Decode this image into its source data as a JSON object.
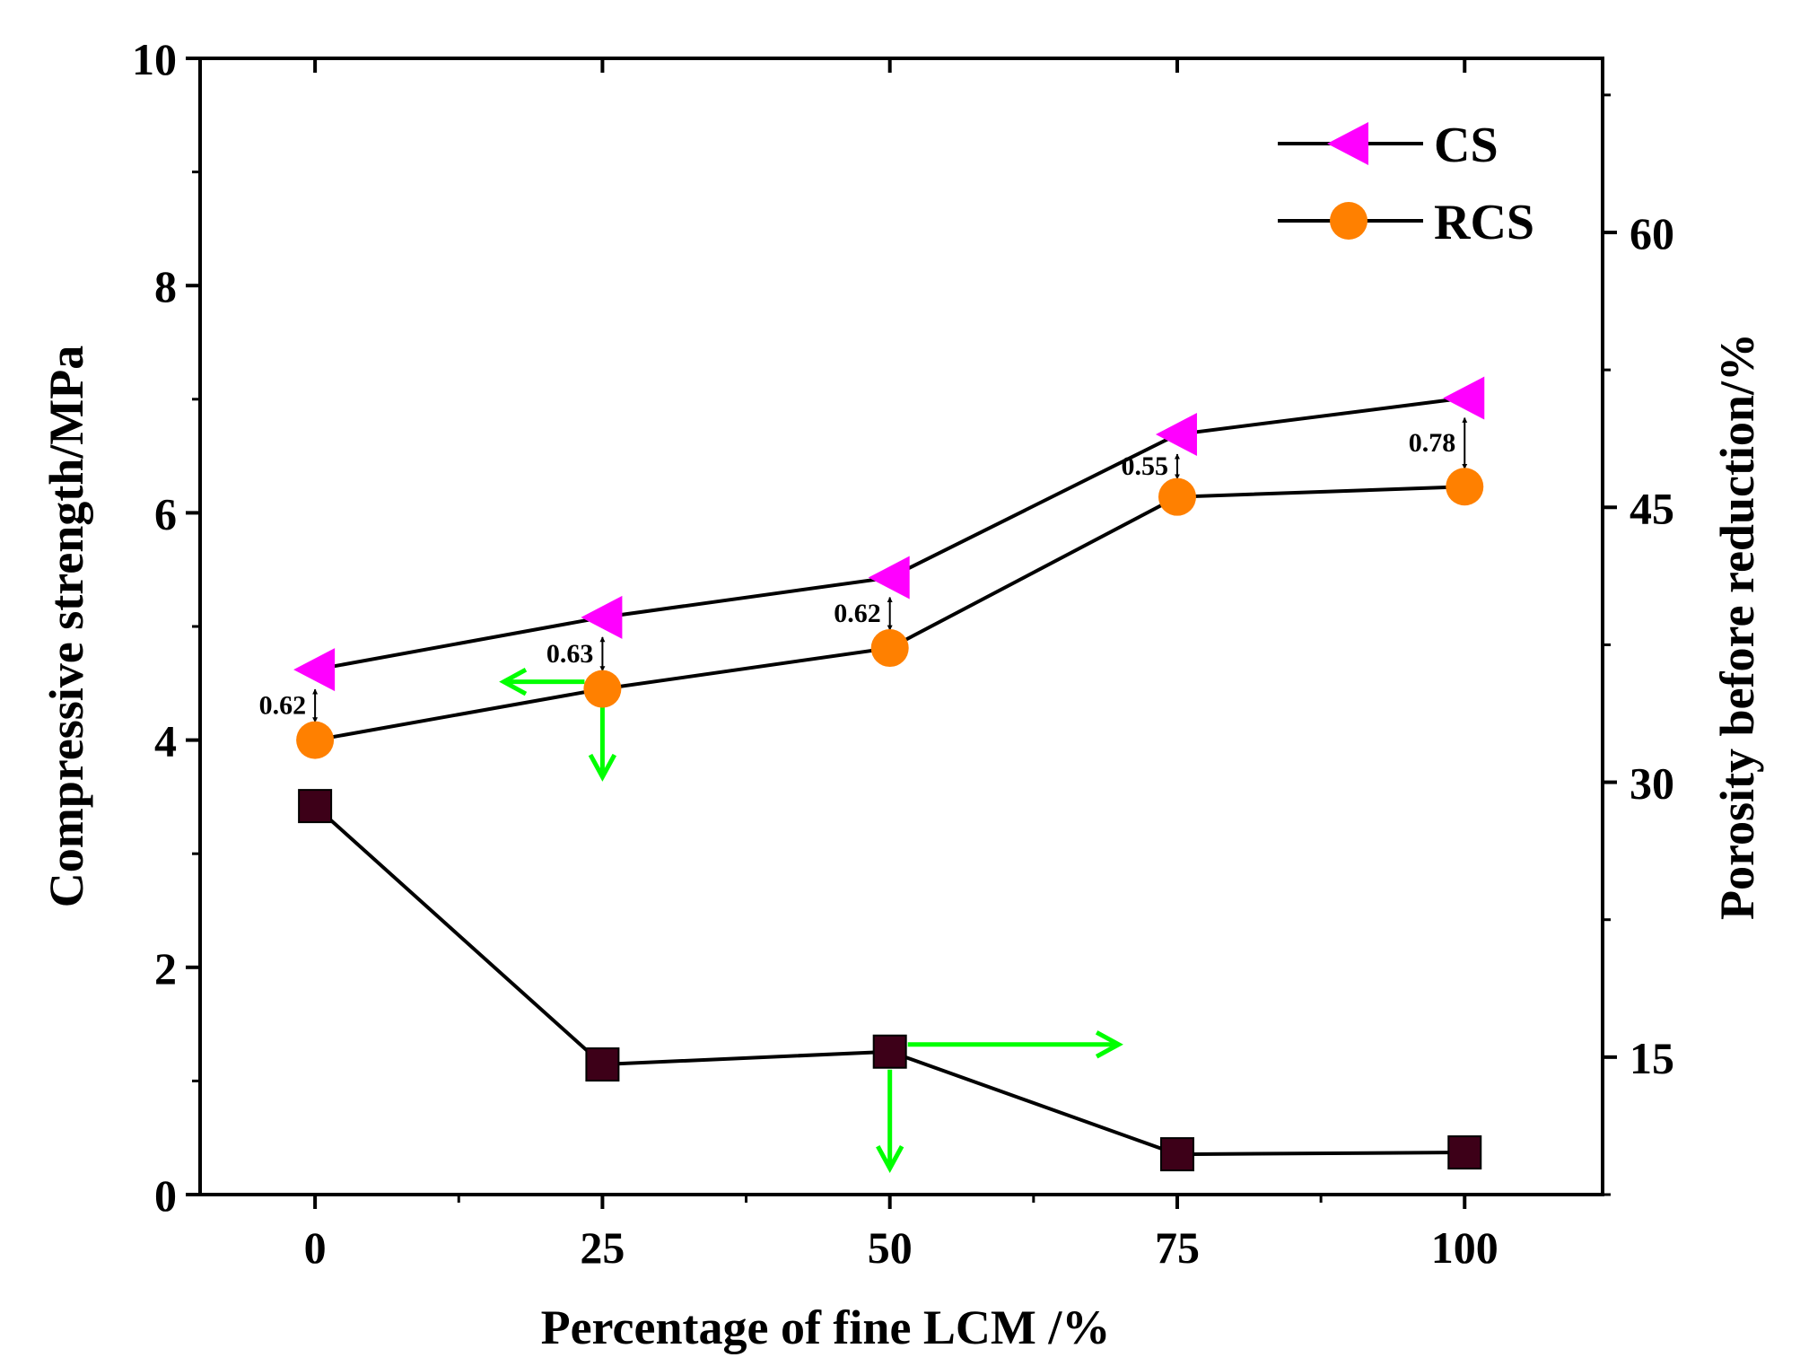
{
  "chart_data": {
    "type": "line",
    "title": "",
    "xlabel": "Percentage of fine LCM /%",
    "ylabel": "Compressive strength/MPa",
    "y2label": "Porosity before reduction/%",
    "xlim": [
      -10,
      112
    ],
    "ylim": [
      0,
      10
    ],
    "y2lim": [
      7.5,
      69.5
    ],
    "x": [
      0,
      25,
      50,
      75,
      100
    ],
    "xticks": [
      "0",
      "25",
      "50",
      "75",
      "100"
    ],
    "yticks": [
      "0",
      "2",
      "4",
      "6",
      "8",
      "10"
    ],
    "y2ticks": [
      "15",
      "30",
      "45",
      "60"
    ],
    "grid": false,
    "legend_position": "top-right",
    "series": [
      {
        "name": "CS",
        "axis": "left",
        "marker": "left-triangle",
        "color": "#ff00ff",
        "values": [
          4.62,
          5.08,
          5.43,
          6.69,
          7.01
        ]
      },
      {
        "name": "RCS",
        "axis": "left",
        "marker": "circle",
        "color": "#ff8000",
        "values": [
          4.0,
          4.45,
          4.81,
          6.14,
          6.23
        ]
      },
      {
        "name": "Porosity",
        "axis": "right",
        "marker": "square",
        "color": "#3d0018",
        "values": [
          28.7,
          14.6,
          15.3,
          9.7,
          9.8
        ]
      }
    ],
    "annotations": [
      {
        "text": "0.62",
        "x": 0
      },
      {
        "text": "0.63",
        "x": 25
      },
      {
        "text": "0.62",
        "x": 50
      },
      {
        "text": "0.55",
        "x": 75
      },
      {
        "text": "0.78",
        "x": 100
      }
    ],
    "indicator_color": "#00ff00"
  }
}
